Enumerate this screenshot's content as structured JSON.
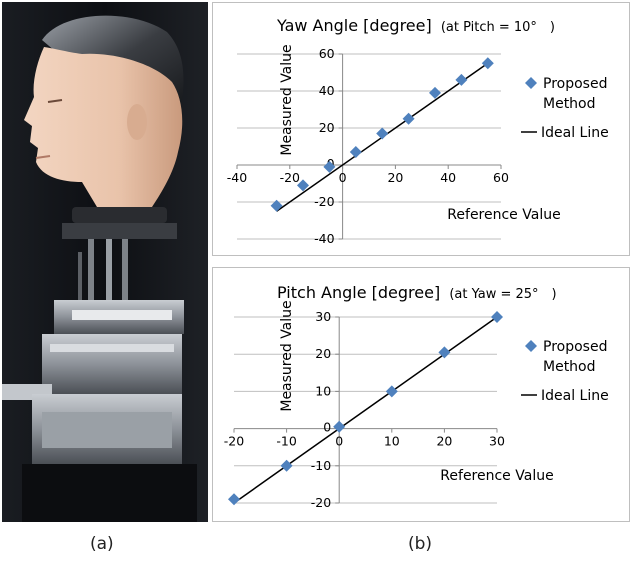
{
  "captions": {
    "left": "(a)",
    "right": "(b)"
  },
  "colors": {
    "marker": "#4f81bd",
    "line": "#000000",
    "grid": "#bfbfbf"
  },
  "chart_data": [
    {
      "type": "scatter",
      "title": "Yaw Angle [degree]",
      "subtitle": "(at Pitch = 10°　)",
      "xlabel": "Reference Value",
      "ylabel": "Measured Value",
      "xlim": [
        -40,
        60
      ],
      "ylim": [
        -40,
        60
      ],
      "xticks": [
        -40,
        -20,
        0,
        20,
        40,
        60
      ],
      "yticks": [
        -40,
        -20,
        0,
        20,
        40,
        60
      ],
      "grid": "horizontal",
      "legend_position": "right",
      "series": [
        {
          "name": "Proposed Method",
          "name_lines": [
            "Proposed",
            "Method"
          ],
          "marker": "diamond",
          "x": [
            -25,
            -15,
            -5,
            5,
            15,
            25,
            35,
            45,
            55
          ],
          "y": [
            -22,
            -11,
            -1,
            7,
            17,
            25,
            39,
            46,
            55
          ]
        },
        {
          "name": "Ideal Line",
          "line": true,
          "x": [
            -25,
            55
          ],
          "y": [
            -25,
            55
          ]
        }
      ]
    },
    {
      "type": "scatter",
      "title": "Pitch Angle [degree]",
      "subtitle": "(at Yaw = 25°　)",
      "xlabel": "Reference Value",
      "ylabel": "Measured Value",
      "xlim": [
        -20,
        30
      ],
      "ylim": [
        -20,
        30
      ],
      "xticks": [
        -20,
        -10,
        0,
        10,
        20,
        30
      ],
      "yticks": [
        -20,
        -10,
        0,
        10,
        20,
        30
      ],
      "grid": "horizontal",
      "legend_position": "right",
      "series": [
        {
          "name": "Proposed Method",
          "name_lines": [
            "Proposed",
            "Method"
          ],
          "marker": "diamond",
          "x": [
            -20,
            -10,
            0,
            10,
            20,
            30
          ],
          "y": [
            -19,
            -10,
            0.5,
            10,
            20.5,
            30
          ]
        },
        {
          "name": "Ideal Line",
          "line": true,
          "x": [
            -20,
            30
          ],
          "y": [
            -20,
            30
          ]
        }
      ]
    }
  ]
}
